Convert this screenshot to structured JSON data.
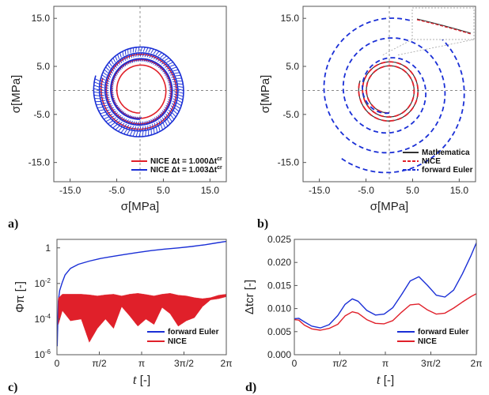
{
  "colors": {
    "red": "#e0202a",
    "blue": "#1a2fd6",
    "black": "#333333",
    "grid": "#777777"
  },
  "chart_data": [
    {
      "id": "a",
      "type": "line",
      "panel_label": "a)",
      "xlabel": "σ1[MPa]",
      "ylabel": "σ2[MPa]",
      "xlim": [
        -18.5,
        18.5
      ],
      "ylim": [
        -19,
        17.5
      ],
      "xticks": [
        -15,
        -5,
        5,
        15
      ],
      "xtick_labels": [
        "-15.0",
        "-5.0",
        "5.0",
        "15.0"
      ],
      "yticks": [
        15,
        5,
        -5,
        -15
      ],
      "ytick_labels": [
        "15.0",
        "5.0",
        "-5.0",
        "-15.0"
      ],
      "series": [
        {
          "name": "NICE Δt = 1.000Δtcr",
          "color": "red",
          "style": "solid",
          "spiral": {
            "r0": 4.7,
            "r1": 8.4,
            "turns": 3.3
          }
        },
        {
          "name": "NICE Δt = 1.003Δtcr",
          "color": "blue",
          "style": "bristle",
          "spiral": {
            "r0": 6.0,
            "r1": 10.0,
            "turns": 3.3
          }
        }
      ],
      "legend": [
        "NICE Δt = 1.000Δt",
        "NICE Δt = 1.003Δt"
      ],
      "legend_sup": "cr",
      "legend_position": "bottom-right"
    },
    {
      "id": "b",
      "type": "line",
      "panel_label": "b)",
      "xlabel": "σ1[MPa]",
      "ylabel": "σ2[MPa]",
      "xlim": [
        -18.5,
        18.5
      ],
      "ylim": [
        -19,
        17.5
      ],
      "xticks": [
        -15,
        -5,
        5,
        15
      ],
      "xtick_labels": [
        "-15.0",
        "-5.0",
        "5.0",
        "15.0"
      ],
      "yticks": [
        15,
        5,
        -5,
        -15
      ],
      "ytick_labels": [
        "15.0",
        "5.0",
        "-5.0",
        "-15.0"
      ],
      "series": [
        {
          "name": "Mathematica",
          "color": "black",
          "style": "solid",
          "spiral": {
            "r0": 4.7,
            "r1": 6.6,
            "turns": 2.3
          }
        },
        {
          "name": "NICE",
          "color": "red",
          "style": "dashed",
          "spiral": {
            "r0": 4.7,
            "r1": 6.6,
            "turns": 2.3
          }
        },
        {
          "name": "forward Euler",
          "color": "blue",
          "style": "dashed",
          "spiral": {
            "r0": 4.7,
            "r1": 17.5,
            "turns": 3.1
          }
        }
      ],
      "legend": [
        "Mathematica",
        "NICE",
        "forward Euler"
      ],
      "legend_position": "bottom-right",
      "inset": "zoom on trajectory segment"
    },
    {
      "id": "c",
      "type": "line",
      "panel_label": "c)",
      "xlabel": "t [-]",
      "ylabel": "Φπ [-]",
      "yscale": "log",
      "xlim": [
        0,
        6.2832
      ],
      "ylim": [
        1e-06,
        3
      ],
      "xtick_labels": [
        "0",
        "π/2",
        "π",
        "3π/2",
        "2π"
      ],
      "ytick_labels": [
        "1",
        "10-2",
        "10-4",
        "10-6"
      ],
      "series": [
        {
          "name": "forward Euler",
          "color": "blue",
          "x": [
            0.01,
            0.05,
            0.1,
            0.2,
            0.3,
            0.5,
            0.8,
            1.2,
            1.6,
            2.0,
            2.5,
            3.0,
            3.5,
            4.0,
            4.5,
            5.0,
            5.5,
            6.0,
            6.28
          ],
          "y": [
            3e-06,
            0.001,
            0.004,
            0.012,
            0.03,
            0.07,
            0.12,
            0.18,
            0.25,
            0.32,
            0.42,
            0.55,
            0.7,
            0.85,
            1.0,
            1.2,
            1.5,
            2.0,
            2.3
          ]
        },
        {
          "name": "NICE",
          "color": "red",
          "type": "band",
          "x": [
            0.05,
            0.2,
            0.5,
            0.9,
            1.2,
            1.5,
            1.8,
            2.1,
            2.4,
            2.7,
            3.0,
            3.3,
            3.6,
            3.9,
            4.2,
            4.5,
            4.8,
            5.1,
            5.4,
            5.7,
            6.0,
            6.28
          ],
          "upper": [
            0.0015,
            0.0025,
            0.0025,
            0.0025,
            0.0023,
            0.002,
            0.0023,
            0.0025,
            0.002,
            0.0025,
            0.0028,
            0.0024,
            0.002,
            0.0025,
            0.0028,
            0.0022,
            0.002,
            0.0016,
            0.0014,
            0.0016,
            0.0022,
            0.0025
          ],
          "lower": [
            5e-05,
            0.0003,
            8e-05,
            0.0001,
            5e-06,
            3e-05,
            0.0001,
            3e-05,
            0.0005,
            0.00015,
            4e-05,
            0.0001,
            5e-05,
            0.00045,
            0.0002,
            4e-05,
            8e-05,
            0.00012,
            0.0005,
            0.0012,
            0.0014,
            0.0018
          ]
        }
      ],
      "legend": [
        "forward Euler",
        "NICE"
      ],
      "legend_position": "bottom-right"
    },
    {
      "id": "d",
      "type": "line",
      "panel_label": "d)",
      "xlabel": "t [-]",
      "ylabel": "Δtcr [-]",
      "xlim": [
        0,
        6.2832
      ],
      "ylim": [
        0,
        0.025
      ],
      "yticks": [
        0.0,
        0.005,
        0.01,
        0.015,
        0.02,
        0.025
      ],
      "ytick_labels": [
        "0.000",
        "0.005",
        "0.010",
        "0.015",
        "0.020",
        "0.025"
      ],
      "xtick_labels": [
        "0",
        "π/2",
        "π",
        "3π/2",
        "2π"
      ],
      "series": [
        {
          "name": "forward Euler",
          "color": "blue",
          "x": [
            0,
            0.15,
            0.35,
            0.6,
            0.9,
            1.2,
            1.5,
            1.75,
            2.0,
            2.2,
            2.5,
            2.8,
            3.1,
            3.4,
            3.7,
            4.0,
            4.3,
            4.6,
            4.9,
            5.2,
            5.5,
            5.8,
            6.1,
            6.28
          ],
          "y": [
            0.0078,
            0.0079,
            0.0071,
            0.0062,
            0.0058,
            0.0065,
            0.0085,
            0.0109,
            0.0121,
            0.0116,
            0.0096,
            0.0086,
            0.0088,
            0.0102,
            0.013,
            0.016,
            0.0169,
            0.015,
            0.0129,
            0.0125,
            0.014,
            0.0175,
            0.0215,
            0.0242
          ]
        },
        {
          "name": "NICE",
          "color": "red",
          "x": [
            0,
            0.15,
            0.35,
            0.6,
            0.9,
            1.2,
            1.5,
            1.75,
            2.0,
            2.2,
            2.5,
            2.8,
            3.1,
            3.4,
            3.7,
            4.0,
            4.3,
            4.6,
            4.9,
            5.2,
            5.5,
            5.8,
            6.1,
            6.28
          ],
          "y": [
            0.0076,
            0.0075,
            0.0064,
            0.0056,
            0.0053,
            0.0057,
            0.0066,
            0.0084,
            0.0093,
            0.009,
            0.0076,
            0.0068,
            0.0067,
            0.0074,
            0.0092,
            0.0108,
            0.011,
            0.0097,
            0.0088,
            0.009,
            0.0101,
            0.0114,
            0.0126,
            0.0132
          ]
        }
      ],
      "legend": [
        "forward Euler",
        "NICE"
      ],
      "legend_position": "bottom-right"
    }
  ]
}
